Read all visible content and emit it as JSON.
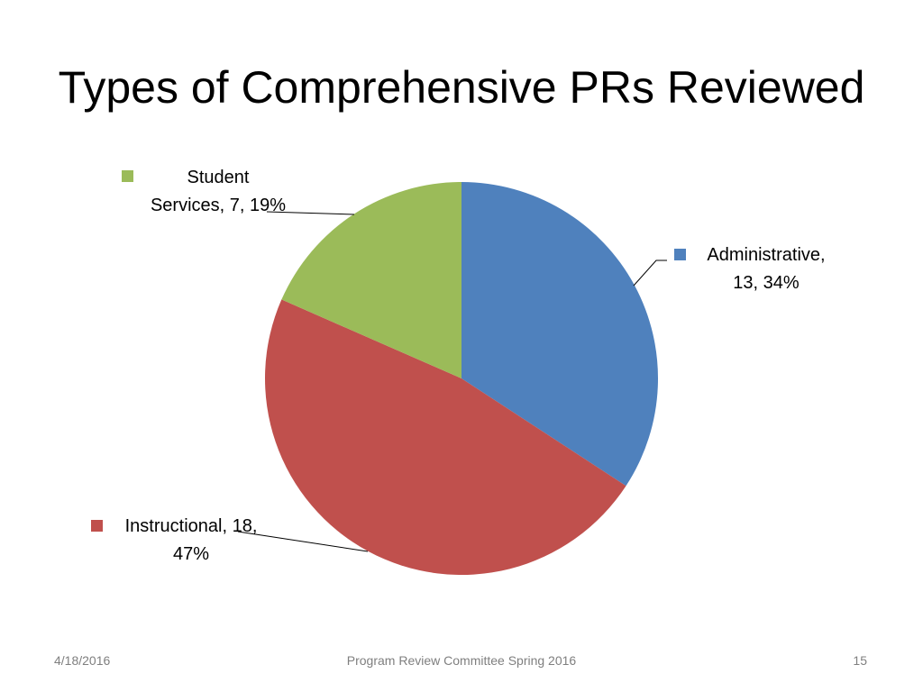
{
  "slide": {
    "title": "Types of Comprehensive PRs Reviewed"
  },
  "footer": {
    "date": "4/18/2016",
    "center_text": "Program Review Committee Spring 2016",
    "page_number": "15"
  },
  "chart_data": {
    "type": "pie",
    "title": "",
    "start_angle_deg": 0,
    "direction": "clockwise",
    "slices": [
      {
        "name": "Administrative",
        "value": 13,
        "percent": 34,
        "color": "#4f81bd",
        "label_lines": [
          "Administrative,",
          "13, 34%"
        ]
      },
      {
        "name": "Instructional",
        "value": 18,
        "percent": 47,
        "color": "#c0504d",
        "label_lines": [
          "Instructional, 18,",
          "47%"
        ]
      },
      {
        "name": "Student Services",
        "value": 7,
        "percent": 19,
        "color": "#9bbb59",
        "label_lines": [
          "Student",
          "Services, 7, 19%"
        ]
      }
    ]
  }
}
